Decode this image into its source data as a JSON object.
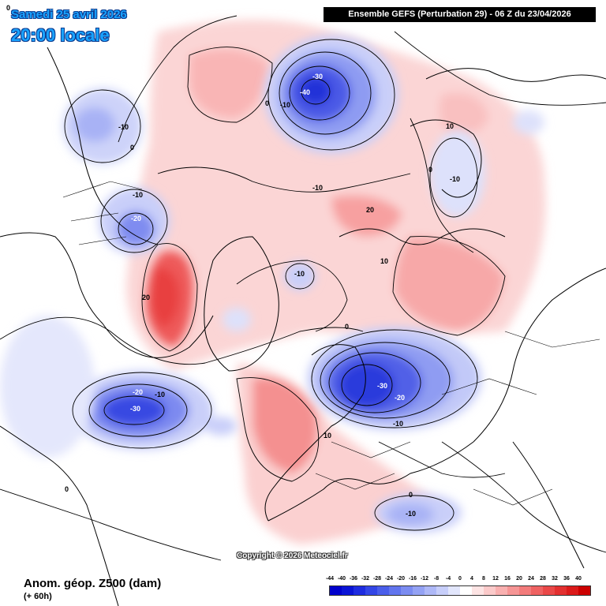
{
  "header": {
    "date_line": "Samedi 25 avril 2026",
    "time_line": "20:00 locale",
    "run_info": "Ensemble GEFS  (Perturbation 29)  -  06 Z du 23/04/2026"
  },
  "footer": {
    "copyright": "Copyright © 2026 Meteociel.fr",
    "legend_title": "Anom. géop. Z500 (dam)",
    "legend_sub": "(+ 60h)"
  },
  "scale": {
    "labels": [
      "-44",
      "-40",
      "-36",
      "-32",
      "-28",
      "-24",
      "-20",
      "-16",
      "-12",
      "-8",
      "-4",
      "0",
      "4",
      "8",
      "12",
      "16",
      "20",
      "24",
      "28",
      "32",
      "36",
      "40"
    ],
    "colors": [
      "#0000cc",
      "#0a14d6",
      "#1e2ce0",
      "#3346e6",
      "#4a5eea",
      "#6275ee",
      "#7b8cf1",
      "#94a2f4",
      "#aeb8f7",
      "#c7cefa",
      "#e2e6fc",
      "#ffffff",
      "#fde4e4",
      "#fbcaca",
      "#f9b0b0",
      "#f69595",
      "#f37b7b",
      "#ef6262",
      "#ea4848",
      "#e33030",
      "#db1a1a",
      "#cc0000"
    ]
  },
  "contour_labels": [
    {
      "text": "-10",
      "tone": "dark"
    },
    {
      "text": "0",
      "tone": "dark"
    },
    {
      "text": "-10",
      "tone": "dark"
    },
    {
      "text": "-20",
      "tone": "light"
    },
    {
      "text": "-30",
      "tone": "light"
    },
    {
      "text": "-40",
      "tone": "light"
    },
    {
      "text": "-10",
      "tone": "dark"
    },
    {
      "text": "0",
      "tone": "dark"
    },
    {
      "text": "10",
      "tone": "dark"
    },
    {
      "text": "0",
      "tone": "dark"
    },
    {
      "text": "-10",
      "tone": "dark"
    },
    {
      "text": "-10",
      "tone": "dark"
    },
    {
      "text": "20",
      "tone": "dark"
    },
    {
      "text": "10",
      "tone": "dark"
    },
    {
      "text": "-10",
      "tone": "dark"
    },
    {
      "text": "20",
      "tone": "dark"
    },
    {
      "text": "0",
      "tone": "dark"
    },
    {
      "text": "-30",
      "tone": "light"
    },
    {
      "text": "-20",
      "tone": "light"
    },
    {
      "text": "-10",
      "tone": "dark"
    },
    {
      "text": "-20",
      "tone": "light"
    },
    {
      "text": "-10",
      "tone": "dark"
    },
    {
      "text": "-30",
      "tone": "light"
    },
    {
      "text": "10",
      "tone": "dark"
    },
    {
      "text": "0",
      "tone": "dark"
    },
    {
      "text": "-10",
      "tone": "dark"
    },
    {
      "text": "0",
      "tone": "dark"
    },
    {
      "text": "0",
      "tone": "dark"
    }
  ]
}
